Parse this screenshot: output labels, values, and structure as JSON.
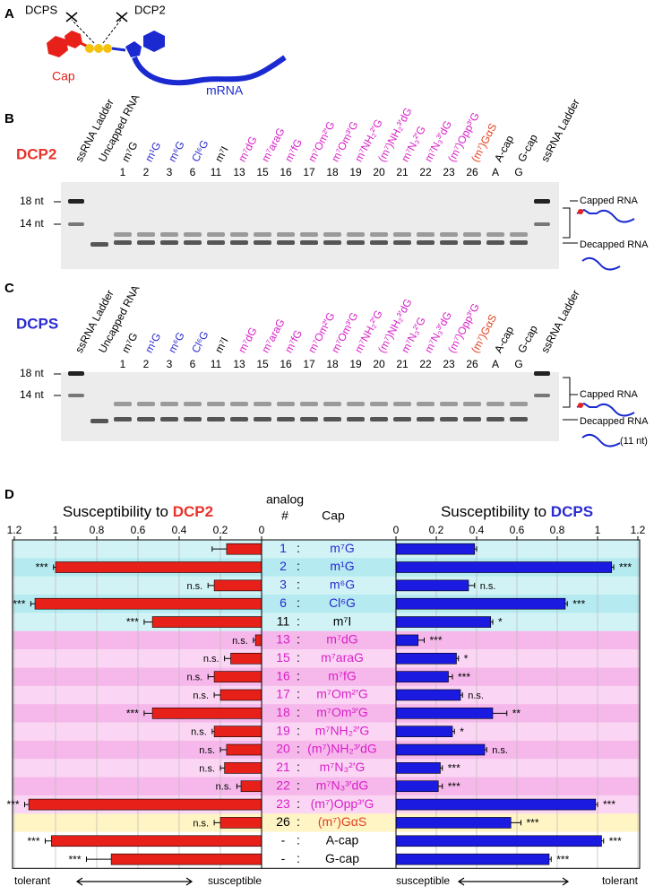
{
  "panel_a": {
    "label": "A",
    "enzyme_left": "DCPS",
    "enzyme_right": "DCP2",
    "cap": "Cap",
    "mrna": "mRNA"
  },
  "panel_b": {
    "label": "B",
    "enzyme": "DCP2",
    "enzyme_color": "#e8322a",
    "lanes": [
      "ssRNA Ladder",
      "Uncapped RNA",
      "m⁷G",
      "m¹G",
      "m⁶G",
      "Cl⁶G",
      "m⁷I",
      "m⁷dG",
      "m⁷araG",
      "m⁷fG",
      "m⁷Om²′G",
      "m⁷Om³′G",
      "m⁷NH₂²′G",
      "(m⁷)NH₂³′dG",
      "m⁷N₃²′G",
      "m⁷N₃³′dG",
      "(m⁷)Opp³′G",
      "(m⁷)GαS",
      "A-cap",
      "G-cap",
      "ssRNA Ladder"
    ],
    "lane_colors": [
      "#000000",
      "#000000",
      "#000000",
      "#2a2ad0",
      "#2a2ad0",
      "#2a2ad0",
      "#000000",
      "#d81fc8",
      "#d81fc8",
      "#d81fc8",
      "#d81fc8",
      "#d81fc8",
      "#d81fc8",
      "#d81fc8",
      "#d81fc8",
      "#d81fc8",
      "#d81fc8",
      "#e04020",
      "#000000",
      "#000000",
      "#000000"
    ],
    "lane_numbers": [
      null,
      null,
      "1",
      "2",
      "3",
      "6",
      "11",
      "13",
      "15",
      "16",
      "17",
      "18",
      "19",
      "20",
      "21",
      "22",
      "23",
      "26",
      "A",
      "G",
      null
    ],
    "markers": [
      "18 nt",
      "14 nt"
    ],
    "capped": "Capped RNA",
    "decapped": "Decapped RNA"
  },
  "panel_c": {
    "label": "C",
    "enzyme": "DCPS",
    "enzyme_color": "#2a2ad0",
    "lanes": [
      "ssRNA Ladder",
      "Uncapped RNA",
      "m⁷G",
      "m¹G",
      "m⁶G",
      "Cl⁶G",
      "m⁷I",
      "m⁷dG",
      "m⁷araG",
      "m⁷fG",
      "m⁷Om²′G",
      "m⁷Om³′G",
      "m⁷NH₂²′G",
      "(m⁷)NH₂³′dG",
      "m⁷N₃²′G",
      "m⁷N₃³′dG",
      "(m⁷)Opp³′G",
      "(m⁷)GαS",
      "A-cap",
      "G-cap",
      "ssRNA Ladder"
    ],
    "lane_colors": [
      "#000000",
      "#000000",
      "#000000",
      "#2a2ad0",
      "#2a2ad0",
      "#2a2ad0",
      "#000000",
      "#d81fc8",
      "#d81fc8",
      "#d81fc8",
      "#d81fc8",
      "#d81fc8",
      "#d81fc8",
      "#d81fc8",
      "#d81fc8",
      "#d81fc8",
      "#d81fc8",
      "#e04020",
      "#000000",
      "#000000",
      "#000000"
    ],
    "lane_numbers": [
      null,
      null,
      "1",
      "2",
      "3",
      "6",
      "11",
      "13",
      "15",
      "16",
      "17",
      "18",
      "19",
      "20",
      "21",
      "22",
      "23",
      "26",
      "A",
      "G",
      null
    ],
    "markers": [
      "18 nt",
      "14 nt"
    ],
    "capped": "Capped RNA",
    "decapped": "Decapped RNA",
    "decapped_size": "(11 nt)"
  },
  "panel_d": {
    "label": "D",
    "analog_header": [
      "analog",
      "#"
    ],
    "cap_header": "Cap",
    "separator": ":",
    "analogs": [
      "1",
      "2",
      "3",
      "6",
      "11",
      "13",
      "15",
      "16",
      "17",
      "18",
      "19",
      "20",
      "21",
      "22",
      "23",
      "26",
      "-",
      "-"
    ],
    "caps": [
      "m⁷G",
      "m¹G",
      "m⁶G",
      "Cl⁶G",
      "m⁷I",
      "m⁷dG",
      "m⁷araG",
      "m⁷fG",
      "m⁷Om²′G",
      "m⁷Om³′G",
      "m⁷NH₂²′G",
      "(m⁷)NH₂³′dG",
      "m⁷N₃²′G",
      "m⁷N₃³′dG",
      "(m⁷)Opp³′G",
      "(m⁷)GαS",
      "A-cap",
      "G-cap"
    ],
    "cap_colors": [
      "#2a2ad0",
      "#2a2ad0",
      "#2a2ad0",
      "#2a2ad0",
      "#000000",
      "#d81fc8",
      "#d81fc8",
      "#d81fc8",
      "#d81fc8",
      "#d81fc8",
      "#d81fc8",
      "#d81fc8",
      "#d81fc8",
      "#d81fc8",
      "#d81fc8",
      "#e04020",
      "#000000",
      "#000000"
    ],
    "row_colors": [
      "#d2f3f6",
      "#b4eaf0",
      "#d2f3f6",
      "#b4eaf0",
      "#d2f3f6",
      "#f6b8ea",
      "#fbd6f4",
      "#f6b8ea",
      "#fbd6f4",
      "#f6b8ea",
      "#fbd6f4",
      "#f6b8ea",
      "#fbd6f4",
      "#f6b8ea",
      "#fbd6f4",
      "#fff4c4",
      "#ffffff",
      "#ffffff"
    ]
  },
  "chart_data": [
    {
      "type": "bar",
      "orientation": "horizontal",
      "title": "Susceptibility to ",
      "title_highlight": "DCP2",
      "title_highlight_color": "#e8322a",
      "color": "#e8201a",
      "xlim": [
        1.2,
        0
      ],
      "xticks": [
        1.2,
        1,
        0.8,
        0.6,
        0.4,
        0.2,
        0
      ],
      "grid": true,
      "values": [
        0.17,
        1.0,
        0.23,
        1.1,
        0.53,
        0.03,
        0.15,
        0.23,
        0.2,
        0.53,
        0.23,
        0.17,
        0.18,
        0.1,
        1.13,
        0.2,
        1.02,
        0.73
      ],
      "errors": [
        0.07,
        0.01,
        0.03,
        0.02,
        0.04,
        0.01,
        0.03,
        0.03,
        0.03,
        0.04,
        0.01,
        0.03,
        0.02,
        0.02,
        0.02,
        0.03,
        0.03,
        0.12
      ],
      "significance": [
        null,
        "***",
        "n.s.",
        "***",
        "***",
        "n.s.",
        "n.s.",
        "n.s.",
        "n.s.",
        "***",
        "n.s.",
        "n.s.",
        "n.s.",
        "n.s.",
        "***",
        "n.s.",
        "***",
        "***"
      ],
      "axis_labels": [
        "tolerant",
        "susceptible"
      ]
    },
    {
      "type": "bar",
      "orientation": "horizontal",
      "title": "Susceptibility to ",
      "title_highlight": "DCPS",
      "title_highlight_color": "#2a2ad0",
      "color": "#1a1ae0",
      "xlim": [
        0,
        1.2
      ],
      "xticks": [
        0,
        0.2,
        0.4,
        0.6,
        0.8,
        1,
        1.2
      ],
      "grid": true,
      "values": [
        0.39,
        1.07,
        0.36,
        0.84,
        0.47,
        0.11,
        0.3,
        0.26,
        0.32,
        0.48,
        0.28,
        0.44,
        0.22,
        0.21,
        0.99,
        0.57,
        1.02,
        0.76
      ],
      "errors": [
        0.01,
        0.01,
        0.03,
        0.01,
        0.01,
        0.03,
        0.01,
        0.02,
        0.01,
        0.07,
        0.01,
        0.01,
        0.01,
        0.02,
        0.01,
        0.05,
        0.01,
        0.01
      ],
      "significance": [
        null,
        "***",
        "n.s.",
        "***",
        "*",
        "***",
        "*",
        "***",
        "n.s.",
        "**",
        "*",
        "n.s.",
        "***",
        "***",
        "***",
        "***",
        "***",
        "***"
      ],
      "axis_labels": [
        "susceptible",
        "tolerant"
      ]
    }
  ]
}
